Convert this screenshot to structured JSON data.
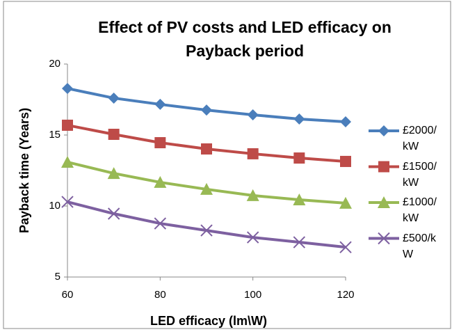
{
  "chart_data": {
    "type": "line",
    "title": "Effect of PV costs and LED efficacy on Payback period",
    "x_label": "LED efficacy (lm\\W)",
    "y_label": "Payback time (Years)",
    "x": [
      60,
      70,
      80,
      90,
      100,
      110,
      120
    ],
    "xlim": [
      60,
      120
    ],
    "xticks": [
      60,
      80,
      100,
      120
    ],
    "ylim": [
      5,
      20
    ],
    "yticks": [
      5,
      10,
      15,
      20
    ],
    "grid": false,
    "legend": "right",
    "series": [
      {
        "name": "£2000/kW",
        "color": "#4a7ebb",
        "marker": "diamond",
        "values": [
          18.28,
          17.6,
          17.16,
          16.76,
          16.42,
          16.13,
          15.93
        ]
      },
      {
        "name": "£1500/kW",
        "color": "#be4b48",
        "marker": "square",
        "values": [
          15.69,
          15.05,
          14.46,
          14.02,
          13.68,
          13.38,
          13.14
        ]
      },
      {
        "name": "£1000/kW",
        "color": "#98b954",
        "marker": "triangle",
        "values": [
          13.09,
          12.3,
          11.67,
          11.18,
          10.74,
          10.44,
          10.2
        ]
      },
      {
        "name": "£500/kW",
        "color": "#7d60a0",
        "marker": "x",
        "values": [
          10.29,
          9.46,
          8.77,
          8.28,
          7.79,
          7.45,
          7.1
        ]
      }
    ]
  }
}
